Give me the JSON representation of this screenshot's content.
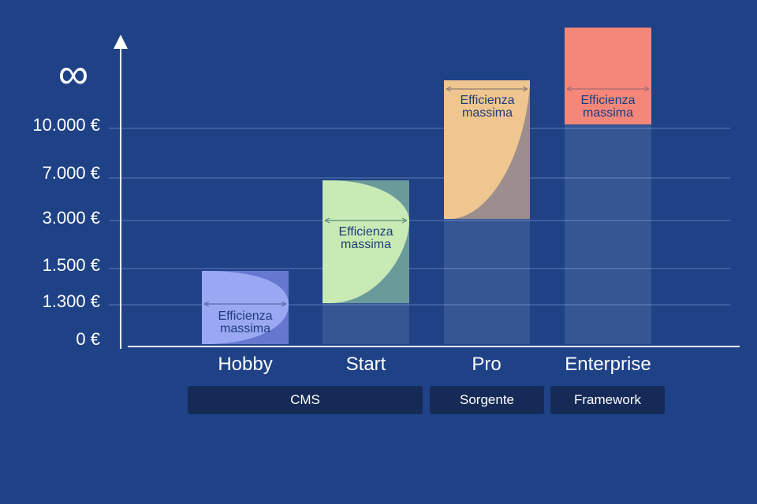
{
  "chart_data": {
    "type": "bar",
    "y_axis": {
      "infinity_symbol": "∞",
      "ticks": [
        "0 €",
        "1.300 €",
        "1.500 €",
        "3.000 €",
        "7.000 €",
        "10.000 €"
      ]
    },
    "plans": [
      {
        "name": "Hobby",
        "range": [
          "0 €",
          "1.500 €"
        ],
        "color": "#9aa8f4",
        "efficiency_label": [
          "Efficienza",
          "massima"
        ]
      },
      {
        "name": "Start",
        "range": [
          "1.300 €",
          "7.000 €"
        ],
        "color": "#c8eab4",
        "efficiency_label": [
          "Efficienza",
          "massima"
        ]
      },
      {
        "name": "Pro",
        "range": [
          "3.000 €",
          "∞"
        ],
        "color": "#efc68f",
        "efficiency_label": [
          "Efficienza",
          "massima"
        ]
      },
      {
        "name": "Enterprise",
        "range": [
          "10.000 €",
          "∞"
        ],
        "color": "#f4877a",
        "efficiency_label": [
          "Efficienza",
          "massima"
        ]
      }
    ],
    "technologies": [
      {
        "label": "CMS",
        "plans": [
          "Hobby",
          "Start"
        ]
      },
      {
        "label": "Sorgente",
        "plans": [
          "Pro"
        ]
      },
      {
        "label": "Framework",
        "plans": [
          "Enterprise"
        ]
      }
    ]
  }
}
